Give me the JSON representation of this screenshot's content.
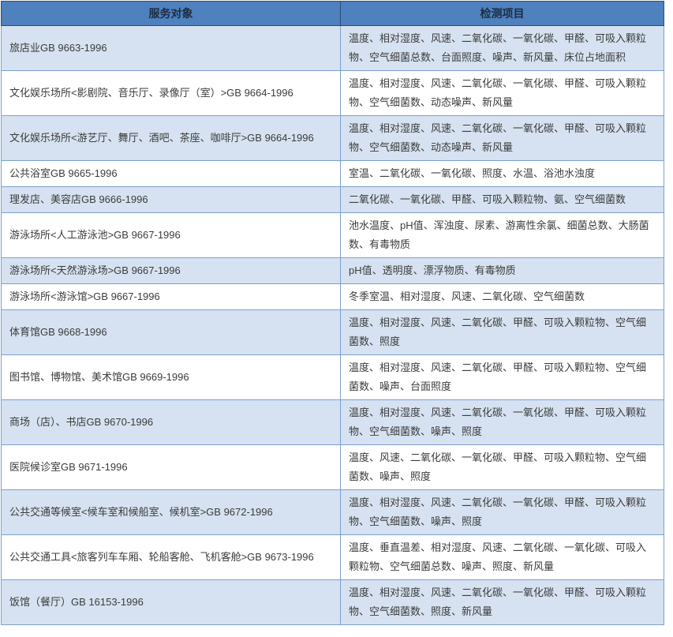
{
  "colors": {
    "header_bg": "#4e81bd",
    "header_border": "#2d4d76",
    "header_text": "#1d2b42",
    "band_bg": "#d6e2f1",
    "white_bg": "#ffffff",
    "border": "#7ba0cc",
    "body_text": "#3b3b3b"
  },
  "table": {
    "columns": [
      {
        "label": "服务对象"
      },
      {
        "label": "检测项目"
      }
    ],
    "rows": [
      {
        "service": "旅店业GB 9663-1996",
        "items": "温度、相对湿度、风速、二氧化碳、一氧化碳、甲醛、可吸入颗粒物、空气细菌总数、台面照度、噪声、新风量、床位占地面积"
      },
      {
        "service": "文化娱乐场所<影剧院、音乐厅、录像厅（室）>GB 9664-1996",
        "items": "温度、相对湿度、风速、二氧化碳、一氧化碳、甲醛、可吸入颗粒物、空气细菌数、动态噪声、新风量"
      },
      {
        "service": "文化娱乐场所<游艺厅、舞厅、酒吧、茶座、咖啡厅>GB 9664-1996",
        "items": "温度、相对湿度、风速、二氧化碳、一氧化碳、甲醛、可吸入颗粒物、空气细菌数、动态噪声、新风量"
      },
      {
        "service": "公共浴室GB 9665-1996",
        "items": "室温、二氧化碳、一氧化碳、照度、水温、浴池水浊度"
      },
      {
        "service": "理发店、美容店GB 9666-1996",
        "items": "二氧化碳、一氧化碳、甲醛、可吸入颗粒物、氨、空气细菌数"
      },
      {
        "service": "游泳场所<人工游泳池>GB 9667-1996",
        "items": "池水温度、pH值、浑浊度、尿素、游离性余氯、细菌总数、大肠菌数、有毒物质"
      },
      {
        "service": "游泳场所<天然游泳场>GB 9667-1996",
        "items": "pH值、透明度、漂浮物质、有毒物质"
      },
      {
        "service": "游泳场所<游泳馆>GB 9667-1996",
        "items": "冬季室温、相对湿度、风速、二氧化碳、空气细菌数"
      },
      {
        "service": "体育馆GB 9668-1996",
        "items": "温度、相对湿度、风速、二氧化碳、甲醛、可吸入颗粒物、空气细菌数、照度"
      },
      {
        "service": "图书馆、博物馆、美术馆GB 9669-1996",
        "items": "温度、相对湿度、风速、二氧化碳、甲醛、可吸入颗粒物、空气细菌数、噪声、台面照度"
      },
      {
        "service": "商场（店）、书店GB 9670-1996",
        "items": "温度、相对湿度、风速、二氧化碳、一氧化碳、甲醛、可吸入颗粒物、空气细菌数、噪声、照度"
      },
      {
        "service": "医院候诊室GB 9671-1996",
        "items": "温度、风速、二氧化碳、一氧化碳、甲醛、可吸入颗粒物、空气细菌数、噪声、照度"
      },
      {
        "service": "公共交通等候室<候车室和候船室、候机室>GB 9672-1996",
        "items": "温度、相对湿度、风速、二氧化碳、一氧化碳、甲醛、可吸入颗粒物、空气细菌数、噪声、照度"
      },
      {
        "service": "公共交通工具<旅客列车车厢、轮船客舱、飞机客舱>GB 9673-1996",
        "items": "温度、垂直温差、相对湿度、风速、二氧化碳、一氧化碳、可吸入颗粒物、空气细菌总数、噪声、照度、新风量"
      },
      {
        "service": "饭馆（餐厅）GB 16153-1996",
        "items": "温度、相对湿度、风速、二氧化碳、一氧化碳、甲醛、可吸入颗粒物、空气细菌数、照度、新风量"
      }
    ]
  }
}
